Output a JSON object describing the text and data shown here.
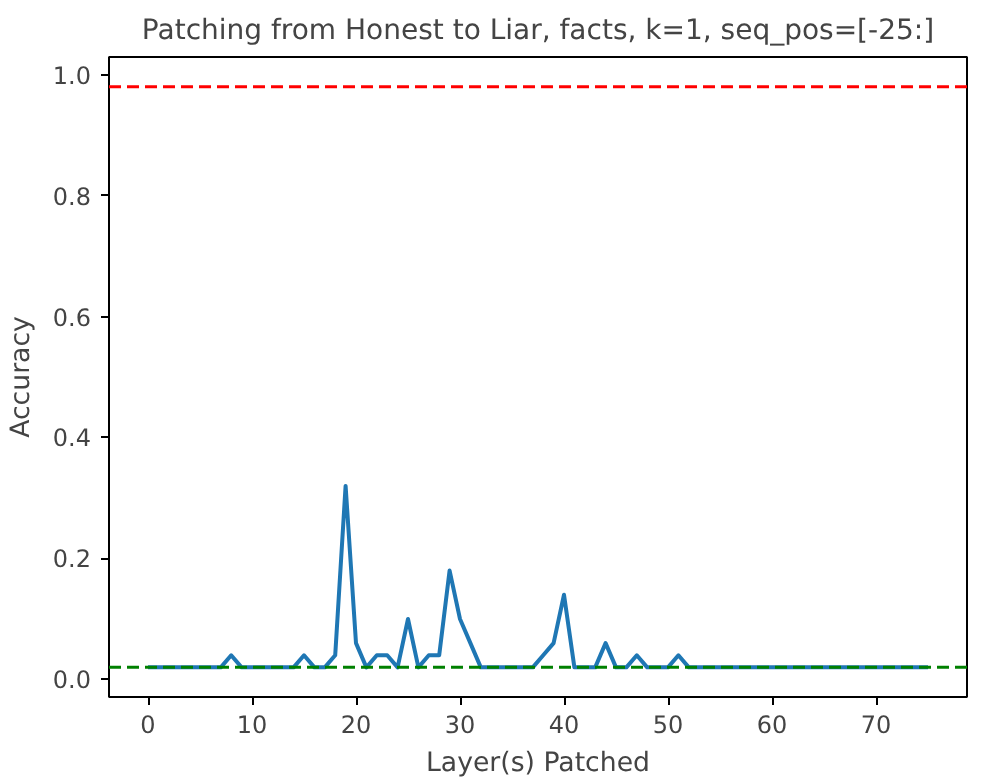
{
  "chart_data": {
    "type": "line",
    "title": "Patching from Honest to Liar, facts, k=1, seq_pos=[-25:]",
    "xlabel": "Layer(s) Patched",
    "ylabel": "Accuracy",
    "x": [
      0,
      1,
      2,
      3,
      4,
      5,
      6,
      7,
      8,
      9,
      10,
      11,
      12,
      13,
      14,
      15,
      16,
      17,
      18,
      19,
      20,
      21,
      22,
      23,
      24,
      25,
      26,
      27,
      28,
      29,
      30,
      31,
      32,
      33,
      34,
      35,
      36,
      37,
      38,
      39,
      40,
      41,
      42,
      43,
      44,
      45,
      46,
      47,
      48,
      49,
      50,
      51,
      52,
      53,
      54,
      55,
      56,
      57,
      58,
      59,
      60,
      61,
      62,
      63,
      64,
      65,
      66,
      67,
      68,
      69,
      70,
      71,
      72,
      73,
      74,
      75
    ],
    "series": [
      {
        "color": "#1f77b4",
        "values": [
          0.02,
          0.02,
          0.02,
          0.02,
          0.02,
          0.02,
          0.02,
          0.02,
          0.04,
          0.02,
          0.02,
          0.02,
          0.02,
          0.02,
          0.02,
          0.04,
          0.02,
          0.02,
          0.04,
          0.32,
          0.06,
          0.02,
          0.04,
          0.04,
          0.02,
          0.1,
          0.02,
          0.04,
          0.04,
          0.18,
          0.1,
          0.06,
          0.02,
          0.02,
          0.02,
          0.02,
          0.02,
          0.02,
          0.04,
          0.06,
          0.14,
          0.02,
          0.02,
          0.02,
          0.06,
          0.02,
          0.02,
          0.04,
          0.02,
          0.02,
          0.02,
          0.04,
          0.02,
          0.02,
          0.02,
          0.02,
          0.02,
          0.02,
          0.02,
          0.02,
          0.02,
          0.02,
          0.02,
          0.02,
          0.02,
          0.02,
          0.02,
          0.02,
          0.02,
          0.02,
          0.02,
          0.02,
          0.02,
          0.02,
          0.02,
          0.02
        ]
      }
    ],
    "ref_lines": [
      {
        "axis": "y",
        "value": 0.98,
        "color": "#ff0000",
        "line_style": "dashed"
      },
      {
        "axis": "y",
        "value": 0.02,
        "color": "#008000",
        "line_style": "dashed"
      }
    ],
    "xlim": [
      -3.75,
      78.75
    ],
    "ylim": [
      -0.029,
      1.029
    ],
    "xticks": [
      0,
      10,
      20,
      30,
      40,
      50,
      60,
      70
    ],
    "yticks": [
      {
        "value": 0,
        "label": "0.0"
      },
      {
        "value": 0.2,
        "label": "0.2"
      },
      {
        "value": 0.4,
        "label": "0.4"
      },
      {
        "value": 0.6,
        "label": "0.6"
      },
      {
        "value": 0.8,
        "label": "0.8"
      },
      {
        "value": 1.0,
        "label": "1.0"
      }
    ],
    "grid": false
  }
}
